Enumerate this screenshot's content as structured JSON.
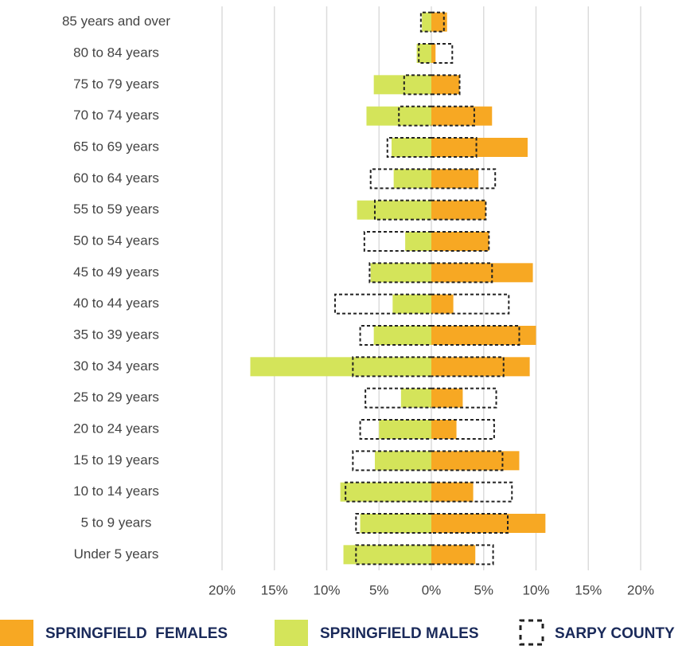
{
  "chart_data": {
    "type": "pyramid",
    "categories": [
      "85 years and over",
      "80 to 84 years",
      "75 to 79 years",
      "70 to 74 years",
      "65 to 69 years",
      "60 to 64 years",
      "55 to 59 years",
      "50 to 54 years",
      "45 to 49 years",
      "40 to 44 years",
      "35 to 39 years",
      "30 to 34 years",
      "25 to 29 years",
      "20 to 24 years",
      "15 to 19 years",
      "10 to 14 years",
      "5 to 9 years",
      "Under 5 years"
    ],
    "series": [
      {
        "name": "SPRINGFIELD  FEMALES",
        "color": "#f7a823",
        "values": [
          1.5,
          0.4,
          2.7,
          5.8,
          9.2,
          4.5,
          5.2,
          5.5,
          9.7,
          2.1,
          10.0,
          9.4,
          3.0,
          2.4,
          8.4,
          4.0,
          10.9,
          4.2
        ]
      },
      {
        "name": "SPRINGFIELD MALES",
        "color": "#d4e45a",
        "values": [
          -0.9,
          -1.4,
          -5.5,
          -6.2,
          -3.8,
          -3.6,
          -7.1,
          -2.5,
          -5.8,
          -3.7,
          -5.5,
          -17.3,
          -2.9,
          -5.0,
          -5.4,
          -8.7,
          -6.8,
          -8.4
        ]
      },
      {
        "name": "SARPY COUNTY",
        "color": "#222222",
        "style": "dashed",
        "values": [
          1.2,
          2.0,
          2.7,
          4.1,
          4.3,
          6.1,
          5.2,
          5.5,
          5.8,
          7.4,
          8.4,
          6.9,
          6.2,
          6.0,
          6.8,
          7.7,
          7.3,
          5.9
        ],
        "values_left": [
          -1.0,
          -1.2,
          -2.6,
          -3.1,
          -4.2,
          -5.8,
          -5.4,
          -6.4,
          -5.9,
          -9.2,
          -6.8,
          -7.5,
          -6.3,
          -6.8,
          -7.5,
          -8.2,
          -7.2,
          -7.2
        ]
      }
    ],
    "xlim": [
      -20,
      20
    ],
    "xticks": [
      {
        "value": -20,
        "label": "20%"
      },
      {
        "value": -15,
        "label": "15%"
      },
      {
        "value": -10,
        "label": "10%"
      },
      {
        "value": -5,
        "label": "5%"
      },
      {
        "value": 0,
        "label": "0%"
      },
      {
        "value": 5,
        "label": "5%"
      },
      {
        "value": 10,
        "label": "10%"
      },
      {
        "value": 15,
        "label": "15%"
      },
      {
        "value": 20,
        "label": "20%"
      }
    ],
    "grid": true,
    "legend": "bottom"
  }
}
